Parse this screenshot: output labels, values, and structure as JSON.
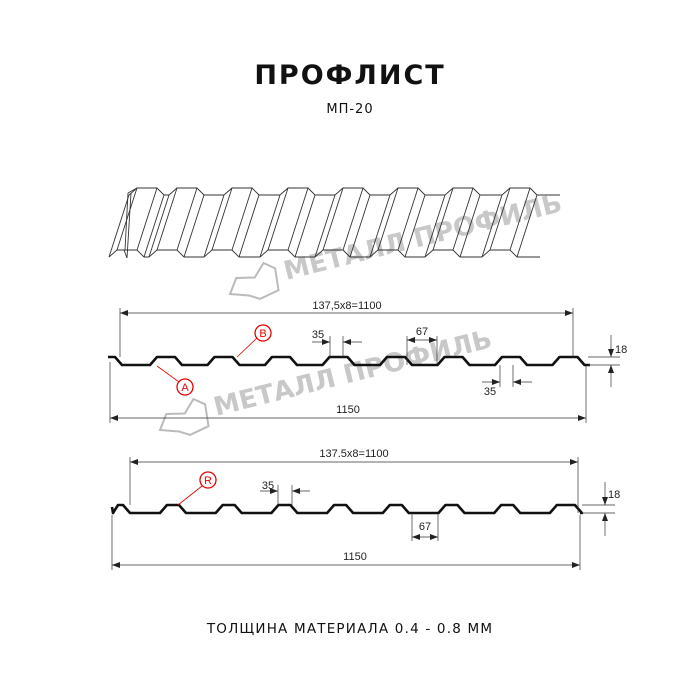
{
  "header": {
    "title": "ПРОФЛИСТ",
    "model": "МП-20"
  },
  "watermark": {
    "text": "МЕТАЛЛ ПРОФИЛЬ",
    "color": "#9c9c9c"
  },
  "profile_a": {
    "pitch_label": "137,5x8=1100",
    "width_label": "1150",
    "top_rib_label": "35",
    "bottom_rib_label": "35",
    "span_label": "67",
    "height_label": "18",
    "marker_a": "A",
    "marker_b": "B"
  },
  "profile_b": {
    "pitch_label": "137.5x8=1100",
    "width_label": "1150",
    "top_rib_label": "35",
    "span_label": "67",
    "height_label": "18",
    "marker_r": "R"
  },
  "footer": {
    "thickness": "ТОЛЩИНА МАТЕРИАЛА 0.4 - 0.8 ММ"
  },
  "colors": {
    "line": "#111111",
    "marker": "#e60000"
  }
}
